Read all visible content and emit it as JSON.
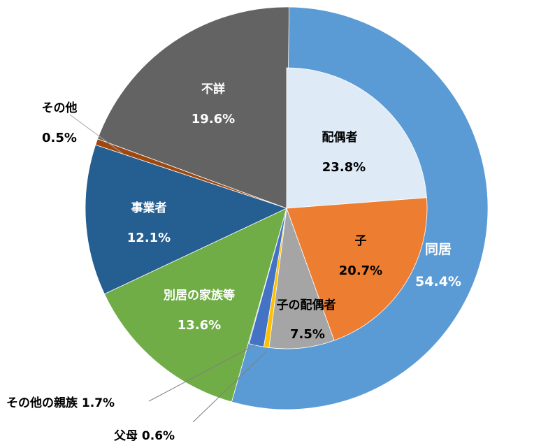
{
  "chart_data": {
    "type": "pie",
    "variant": "pie-of-pie (outer ring with inner pie breakdown of 同居)",
    "outer": [
      {
        "label": "同居",
        "value": 54.4,
        "display": "54.4%",
        "color": "#5b9bd5",
        "text_color": "#ffffff"
      },
      {
        "label": "別居の家族等",
        "value": 13.6,
        "display": "13.6%",
        "color": "#70ad47",
        "text_color": "#ffffff"
      },
      {
        "label": "事業者",
        "value": 12.1,
        "display": "12.1%",
        "color": "#255e91",
        "text_color": "#ffffff"
      },
      {
        "label": "その他",
        "value": 0.5,
        "display": "0.5%",
        "color": "#9e480e",
        "text_color": "#000000"
      },
      {
        "label": "不詳",
        "value": 19.6,
        "display": "19.6%",
        "color": "#636363",
        "text_color": "#ffffff"
      }
    ],
    "inner": [
      {
        "label": "配偶者",
        "value": 23.8,
        "display": "23.8%",
        "color": "#deebf7",
        "text_color": "#000000"
      },
      {
        "label": "子",
        "value": 20.7,
        "display": "20.7%",
        "color": "#ed7d31",
        "text_color": "#000000"
      },
      {
        "label": "子の配偶者",
        "value": 7.5,
        "display": "7.5%",
        "color": "#a5a5a5",
        "text_color": "#000000"
      },
      {
        "label": "父母",
        "value": 0.6,
        "display": "0.6%",
        "color": "#ffc000",
        "text_color": "#000000"
      },
      {
        "label": "その他の親族",
        "value": 1.7,
        "display": "1.7%",
        "color": "#4472c4",
        "text_color": "#000000"
      }
    ],
    "callouts": {
      "sonota": "その他",
      "sonota_value": "0.5%",
      "sonota_shinzoku": "その他の親族 1.7%",
      "fubo": "父母 0.6%"
    }
  }
}
